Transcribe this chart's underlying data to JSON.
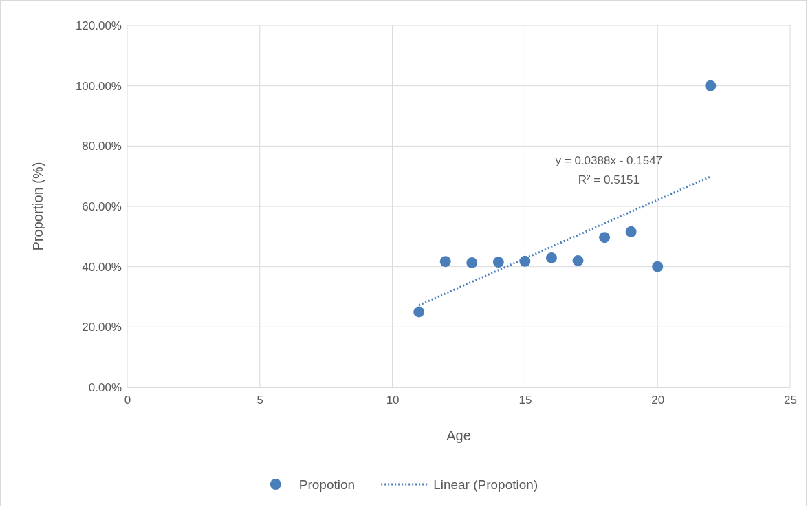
{
  "chart_data": {
    "type": "scatter",
    "xlabel": "Age",
    "ylabel": "Proportion (%)",
    "xlim": [
      0,
      25
    ],
    "xticks": [
      0,
      5,
      10,
      15,
      20,
      25
    ],
    "ylim": [
      0,
      120
    ],
    "yticks": [
      {
        "value": 0,
        "label": "0.00%"
      },
      {
        "value": 20,
        "label": "20.00%"
      },
      {
        "value": 40,
        "label": "40.00%"
      },
      {
        "value": 60,
        "label": "60.00%"
      },
      {
        "value": 80,
        "label": "80.00%"
      },
      {
        "value": 100,
        "label": "100.00%"
      },
      {
        "value": 120,
        "label": "120.00%"
      }
    ],
    "grid": true,
    "legend": "bottom",
    "marker": "circle",
    "series": [
      {
        "name": "Propotion",
        "color": "#4a7ebb",
        "x": [
          11,
          12,
          13,
          14,
          15,
          16,
          17,
          18,
          19,
          20,
          22
        ],
        "values": [
          25,
          41.7,
          41.3,
          41.5,
          41.8,
          42.9,
          42,
          49.7,
          51.6,
          40,
          100
        ]
      },
      {
        "name": "Linear (Propotion)",
        "type": "line",
        "color": "#4a7ebb",
        "line_style": "dotted",
        "marker": "none",
        "x": [
          11,
          22
        ],
        "values": [
          27.2,
          69.9
        ]
      }
    ],
    "annotations": [
      "y = 0.0388x - 0.1547",
      "R² = 0.5151"
    ]
  }
}
